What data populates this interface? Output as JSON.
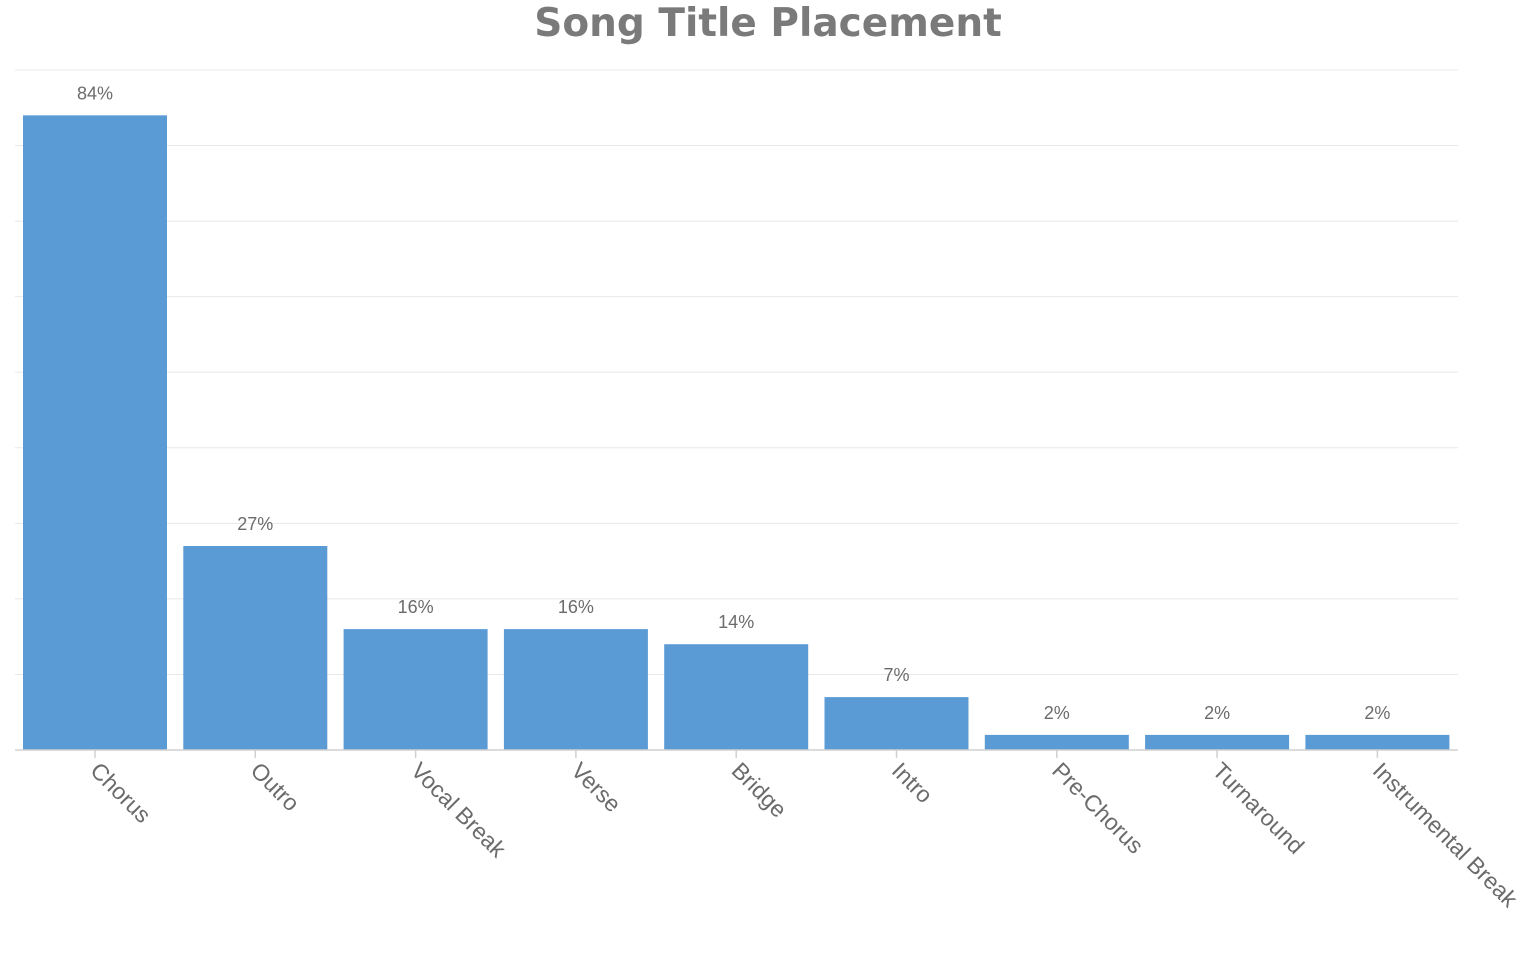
{
  "chart_data": {
    "type": "bar",
    "title": "Song Title Placement",
    "xlabel": "",
    "ylabel": "",
    "categories": [
      "Chorus",
      "Outro",
      "Vocal Break",
      "Verse",
      "Bridge",
      "Intro",
      "Pre-Chorus",
      "Turnaround",
      "Instrumental Break"
    ],
    "values": [
      84,
      27,
      16,
      16,
      14,
      7,
      2,
      2,
      2
    ],
    "value_labels": [
      "84%",
      "27%",
      "16%",
      "16%",
      "14%",
      "7%",
      "2%",
      "2%",
      "2%"
    ],
    "ylim": [
      0,
      90
    ],
    "y_gridlines": [
      10,
      20,
      30,
      40,
      50,
      60,
      70,
      80,
      90
    ],
    "grid": true,
    "legend": "none",
    "bar_color": "#5b9bd5",
    "x_tick_rotation": "45deg clockwise"
  }
}
